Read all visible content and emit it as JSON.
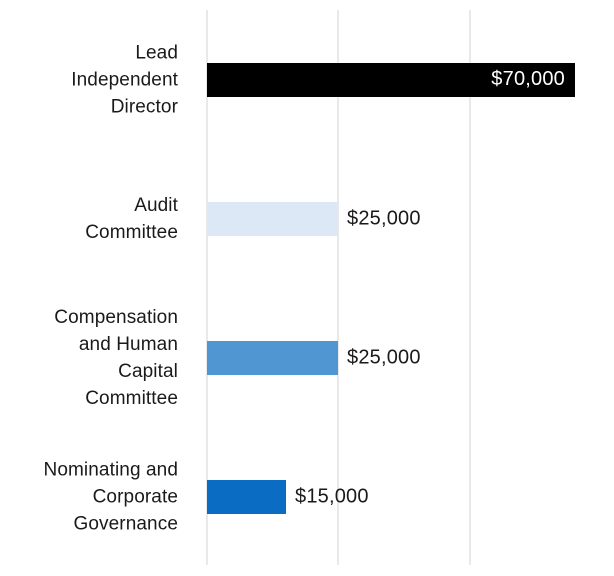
{
  "chart_data": {
    "type": "bar",
    "orientation": "horizontal",
    "title": "",
    "xlabel": "",
    "ylabel": "",
    "xlim": [
      0,
      70000
    ],
    "gridline_values": [
      0,
      25000,
      50000
    ],
    "grid": true,
    "legend": false,
    "categories": [
      "Lead Independent Director",
      "Audit Committee",
      "Compensation and Human Capital Committee",
      "Nominating and Corporate Governance"
    ],
    "category_lines": [
      [
        "Lead",
        "Independent",
        "Director"
      ],
      [
        "Audit",
        "Committee"
      ],
      [
        "Compensation",
        "and Human",
        "Capital",
        "Committee"
      ],
      [
        "Nominating and",
        "Corporate",
        "Governance"
      ]
    ],
    "values": [
      70000,
      25000,
      25000,
      15000
    ],
    "value_labels": [
      "$70,000",
      "$25,000",
      "$25,000",
      "$15,000"
    ],
    "bar_colors": [
      "#000000",
      "#dce8f5",
      "#4f96d3",
      "#0a6cc2"
    ],
    "value_label_placement": [
      "inside",
      "outside",
      "outside",
      "outside"
    ],
    "value_label_colors": [
      "#ffffff",
      "#1a1a1a",
      "#1a1a1a",
      "#1a1a1a"
    ]
  },
  "colors": {
    "background": "#ffffff",
    "gridline": "#e9e9e9",
    "text": "#1a1a1a"
  }
}
